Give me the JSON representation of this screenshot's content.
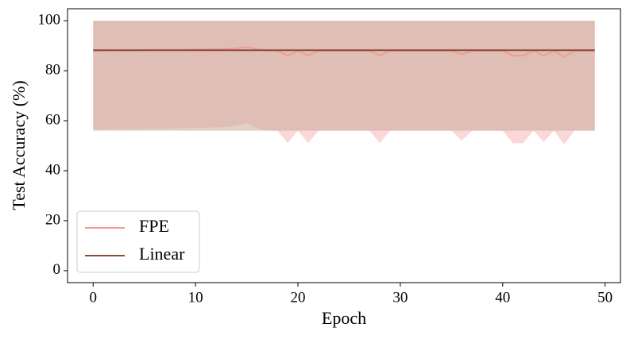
{
  "chart_data": {
    "type": "line",
    "xlabel": "Epoch",
    "ylabel": "Test Accuracy (%)",
    "x": [
      0,
      1,
      2,
      3,
      4,
      5,
      6,
      7,
      8,
      9,
      10,
      11,
      12,
      13,
      14,
      15,
      16,
      17,
      18,
      19,
      20,
      21,
      22,
      23,
      24,
      25,
      26,
      27,
      28,
      29,
      30,
      31,
      32,
      33,
      34,
      35,
      36,
      37,
      38,
      39,
      40,
      41,
      42,
      43,
      44,
      45,
      46,
      47,
      48,
      49
    ],
    "series": [
      {
        "name": "FPE",
        "color": "#f29a9a",
        "band_color": "#f7b6b6",
        "values": [
          88.0,
          88.0,
          88.1,
          88.1,
          88.2,
          88.2,
          88.3,
          88.3,
          88.4,
          88.4,
          88.5,
          88.5,
          88.6,
          88.7,
          89.0,
          89.5,
          88.6,
          88.2,
          88.0,
          86.0,
          88.0,
          86.0,
          88.0,
          88.0,
          88.0,
          88.0,
          88.0,
          88.0,
          86.0,
          88.0,
          88.0,
          88.0,
          88.0,
          88.0,
          88.0,
          88.0,
          86.5,
          88.0,
          88.0,
          88.0,
          88.0,
          86.0,
          86.0,
          88.0,
          86.0,
          88.0,
          85.5,
          88.0,
          88.0,
          88.0
        ],
        "lower": [
          56.5,
          56.5,
          56.6,
          56.6,
          56.7,
          56.7,
          56.8,
          56.8,
          56.9,
          57.0,
          57.1,
          57.2,
          57.3,
          57.5,
          58.0,
          59.0,
          57.0,
          56.0,
          56.0,
          51.0,
          56.0,
          51.0,
          56.0,
          56.0,
          56.0,
          56.0,
          56.0,
          56.0,
          51.0,
          56.0,
          56.0,
          56.0,
          56.0,
          56.0,
          56.0,
          56.0,
          52.0,
          56.0,
          56.0,
          56.0,
          56.0,
          51.0,
          51.0,
          56.0,
          51.5,
          56.0,
          50.5,
          56.0,
          56.0,
          56.0
        ],
        "upper": [
          100,
          100,
          100,
          100,
          100,
          100,
          100,
          100,
          100,
          100,
          100,
          100,
          100,
          100,
          100,
          100,
          100,
          100,
          100,
          100,
          100,
          100,
          100,
          100,
          100,
          100,
          100,
          100,
          100,
          100,
          100,
          100,
          100,
          100,
          100,
          100,
          100,
          100,
          100,
          100,
          100,
          100,
          100,
          100,
          100,
          100,
          100,
          100,
          100,
          100
        ]
      },
      {
        "name": "Linear",
        "color": "#8c4a38",
        "band_color": "#c9a99b",
        "values": [
          88.2,
          88.2,
          88.2,
          88.2,
          88.2,
          88.2,
          88.2,
          88.2,
          88.2,
          88.2,
          88.2,
          88.2,
          88.2,
          88.2,
          88.2,
          88.2,
          88.2,
          88.2,
          88.2,
          88.2,
          88.2,
          88.2,
          88.2,
          88.2,
          88.2,
          88.2,
          88.2,
          88.2,
          88.2,
          88.2,
          88.2,
          88.2,
          88.2,
          88.2,
          88.2,
          88.2,
          88.2,
          88.2,
          88.2,
          88.2,
          88.2,
          88.2,
          88.2,
          88.2,
          88.2,
          88.2,
          88.2,
          88.2,
          88.2,
          88.2
        ],
        "lower": [
          56,
          56,
          56,
          56,
          56,
          56,
          56,
          56,
          56,
          56,
          56,
          56,
          56,
          56,
          56,
          56,
          56,
          56,
          56,
          56,
          56,
          56,
          56,
          56,
          56,
          56,
          56,
          56,
          56,
          56,
          56,
          56,
          56,
          56,
          56,
          56,
          56,
          56,
          56,
          56,
          56,
          56,
          56,
          56,
          56,
          56,
          56,
          56,
          56,
          56
        ],
        "upper": [
          100,
          100,
          100,
          100,
          100,
          100,
          100,
          100,
          100,
          100,
          100,
          100,
          100,
          100,
          100,
          100,
          100,
          100,
          100,
          100,
          100,
          100,
          100,
          100,
          100,
          100,
          100,
          100,
          100,
          100,
          100,
          100,
          100,
          100,
          100,
          100,
          100,
          100,
          100,
          100,
          100,
          100,
          100,
          100,
          100,
          100,
          100,
          100,
          100,
          100
        ]
      }
    ],
    "xlim": [
      -2.5,
      51.5
    ],
    "xticks": [
      0,
      10,
      20,
      30,
      40,
      50
    ],
    "ylim": [
      -4.8,
      104.8
    ],
    "yticks": [
      0,
      20,
      40,
      60,
      80,
      100
    ],
    "grid": false,
    "legend": "lower left"
  }
}
